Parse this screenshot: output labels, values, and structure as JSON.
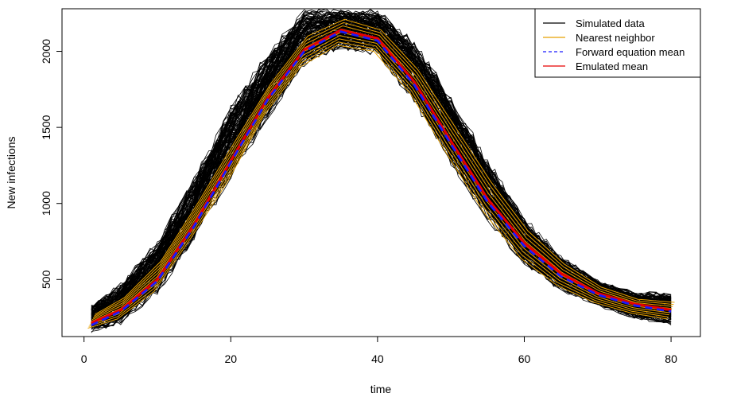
{
  "chart_data": {
    "type": "line",
    "title": "",
    "xlabel": "time",
    "ylabel": "New infections",
    "xlim": [
      -3,
      84
    ],
    "ylim": [
      125,
      2280
    ],
    "xticks": [
      0,
      20,
      40,
      60,
      80
    ],
    "yticks": [
      500,
      1000,
      1500,
      2000
    ],
    "grid": false,
    "legend_position": "top-right",
    "x": [
      1,
      5,
      10,
      15,
      20,
      25,
      30,
      35,
      40,
      45,
      50,
      55,
      60,
      65,
      70,
      75,
      80
    ],
    "series": [
      {
        "name": "Simulated data",
        "color": "#000000",
        "style": "solid",
        "x": [
          1,
          5,
          10,
          15,
          20,
          25,
          30,
          35,
          40,
          45,
          50,
          55,
          60,
          65,
          70,
          75,
          80
        ],
        "low": [
          150,
          200,
          400,
          750,
          1150,
          1550,
          1900,
          2010,
          1970,
          1650,
          1250,
          880,
          590,
          420,
          320,
          240,
          200
        ],
        "high": [
          340,
          480,
          760,
          1180,
          1650,
          2000,
          2280,
          2280,
          2280,
          2080,
          1720,
          1300,
          920,
          660,
          500,
          420,
          430
        ]
      },
      {
        "name": "Nearest neighbor",
        "color": "#e6a000",
        "style": "solid",
        "x": [
          1,
          5,
          10,
          15,
          20,
          25,
          30,
          35,
          40,
          45,
          50,
          55,
          60,
          65,
          70,
          75,
          80
        ],
        "low": [
          180,
          240,
          420,
          770,
          1140,
          1580,
          1900,
          2040,
          2000,
          1720,
          1320,
          940,
          640,
          460,
          350,
          280,
          240
        ],
        "high": [
          270,
          380,
          620,
          1000,
          1400,
          1790,
          2100,
          2210,
          2140,
          1880,
          1510,
          1140,
          820,
          600,
          450,
          370,
          350
        ]
      },
      {
        "name": "Forward equation mean",
        "color": "#1a1aff",
        "style": "dashed",
        "x": [
          1,
          5,
          10,
          15,
          20,
          25,
          30,
          35,
          40,
          45,
          50,
          55,
          60,
          65,
          70,
          75,
          80
        ],
        "values": [
          200,
          290,
          490,
          850,
          1270,
          1680,
          2000,
          2130,
          2070,
          1780,
          1390,
          1010,
          720,
          520,
          400,
          330,
          290
        ]
      },
      {
        "name": "Emulated mean",
        "color": "#e60000",
        "style": "solid",
        "x": [
          1,
          5,
          10,
          15,
          20,
          25,
          30,
          35,
          40,
          45,
          50,
          55,
          60,
          65,
          70,
          75,
          80
        ],
        "values": [
          215,
          300,
          500,
          860,
          1280,
          1690,
          2010,
          2140,
          2085,
          1800,
          1410,
          1030,
          740,
          540,
          410,
          340,
          300
        ]
      }
    ]
  }
}
